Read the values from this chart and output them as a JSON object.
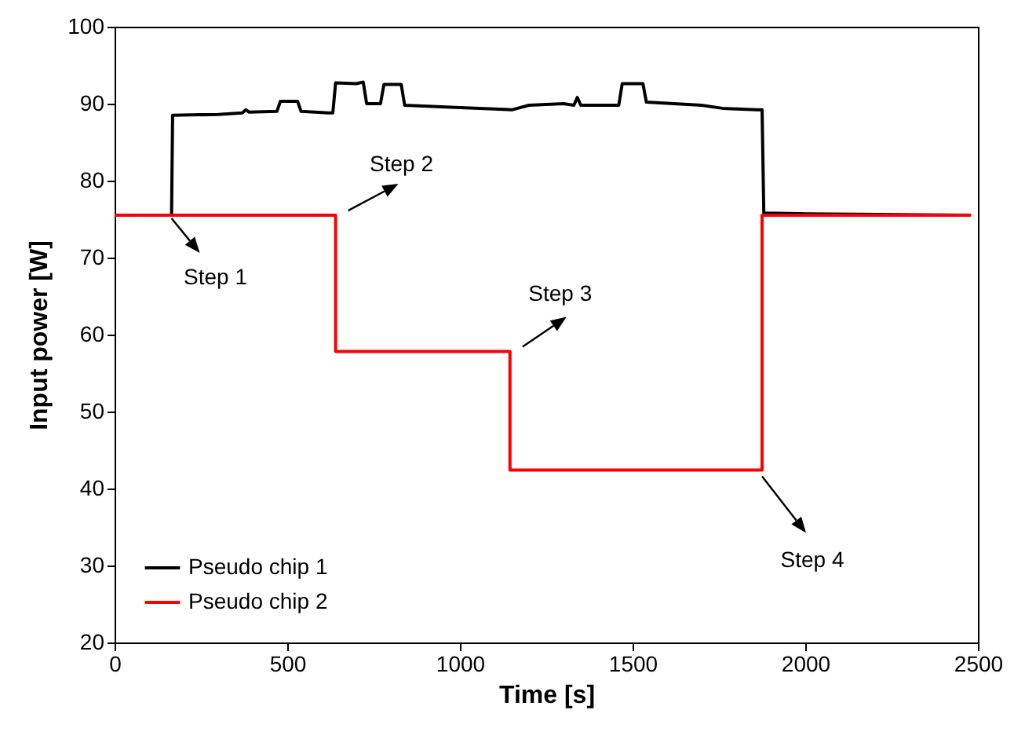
{
  "chart_data": {
    "type": "line",
    "xlabel": "Time [s]",
    "ylabel": "Input power [W]",
    "xlim": [
      0,
      2500
    ],
    "xticks": [
      0,
      500,
      1000,
      1500,
      2000,
      2500
    ],
    "ylim": [
      20,
      100
    ],
    "yticks": [
      20,
      30,
      40,
      50,
      60,
      70,
      80,
      90,
      100
    ],
    "grid": false,
    "legend": "bottom left",
    "series": [
      {
        "name": "Pseudo chip 1",
        "color": "#000000",
        "x": [
          0,
          165,
          168,
          300,
          370,
          380,
          390,
          470,
          480,
          530,
          540,
          620,
          632,
          640,
          700,
          720,
          730,
          770,
          780,
          830,
          840,
          1000,
          1100,
          1150,
          1200,
          1300,
          1330,
          1340,
          1350,
          1460,
          1470,
          1530,
          1540,
          1700,
          1760,
          1860,
          1875,
          1880,
          2000,
          2480
        ],
        "values": [
          75.5,
          75.5,
          88.5,
          88.6,
          88.8,
          89.2,
          88.9,
          89,
          90.3,
          90.3,
          89,
          88.8,
          88.8,
          92.7,
          92.6,
          92.8,
          90,
          90,
          92.5,
          92.5,
          89.8,
          89.5,
          89.3,
          89.2,
          89.8,
          90,
          89.8,
          90.8,
          89.8,
          89.8,
          92.6,
          92.6,
          90.2,
          89.8,
          89.4,
          89.2,
          89.2,
          75.8,
          75.7,
          75.5
        ]
      },
      {
        "name": "Pseudo chip 2",
        "color": "#ff0000",
        "x": [
          0,
          640,
          640,
          1145,
          1145,
          1875,
          1875,
          2480
        ],
        "values": [
          75.5,
          75.5,
          57.8,
          57.8,
          42.4,
          42.4,
          75.5,
          75.5
        ]
      }
    ],
    "annotations": [
      {
        "text": "Step 1",
        "x": 165,
        "y": 75.5
      },
      {
        "text": "Step 2",
        "x": 640,
        "y": 75.5
      },
      {
        "text": "Step 3",
        "x": 1145,
        "y": 57.8
      },
      {
        "text": "Step 4",
        "x": 1875,
        "y": 42.4
      }
    ]
  }
}
